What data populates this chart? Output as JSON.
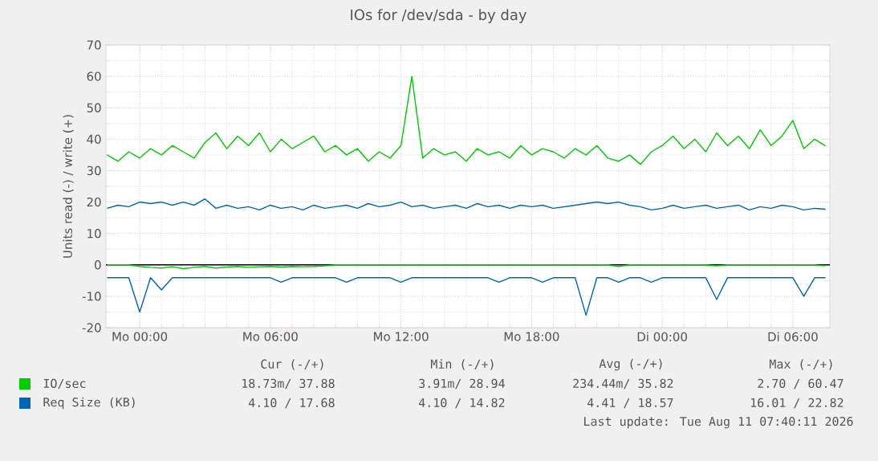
{
  "chart_data": {
    "type": "line",
    "title": "IOs for /dev/sda - by day",
    "ylabel": "Units read (-) / write (+)",
    "x": [
      "2026-08-09T22:30",
      "2026-08-09T23:00",
      "2026-08-09T23:30",
      "2026-08-10T00:00",
      "2026-08-10T00:30",
      "2026-08-10T01:00",
      "2026-08-10T01:30",
      "2026-08-10T02:00",
      "2026-08-10T02:30",
      "2026-08-10T03:00",
      "2026-08-10T03:30",
      "2026-08-10T04:00",
      "2026-08-10T04:30",
      "2026-08-10T05:00",
      "2026-08-10T05:30",
      "2026-08-10T06:00",
      "2026-08-10T06:30",
      "2026-08-10T07:00",
      "2026-08-10T07:30",
      "2026-08-10T08:00",
      "2026-08-10T08:30",
      "2026-08-10T09:00",
      "2026-08-10T09:30",
      "2026-08-10T10:00",
      "2026-08-10T10:30",
      "2026-08-10T11:00",
      "2026-08-10T11:30",
      "2026-08-10T12:00",
      "2026-08-10T12:30",
      "2026-08-10T13:00",
      "2026-08-10T13:30",
      "2026-08-10T14:00",
      "2026-08-10T14:30",
      "2026-08-10T15:00",
      "2026-08-10T15:30",
      "2026-08-10T16:00",
      "2026-08-10T16:30",
      "2026-08-10T17:00",
      "2026-08-10T17:30",
      "2026-08-10T18:00",
      "2026-08-10T18:30",
      "2026-08-10T19:00",
      "2026-08-10T19:30",
      "2026-08-10T20:00",
      "2026-08-10T20:30",
      "2026-08-10T21:00",
      "2026-08-10T21:30",
      "2026-08-10T22:00",
      "2026-08-10T22:30",
      "2026-08-10T23:00",
      "2026-08-10T23:30",
      "2026-08-11T00:00",
      "2026-08-11T00:30",
      "2026-08-11T01:00",
      "2026-08-11T01:30",
      "2026-08-11T02:00",
      "2026-08-11T02:30",
      "2026-08-11T03:00",
      "2026-08-11T03:30",
      "2026-08-11T04:00",
      "2026-08-11T04:30",
      "2026-08-11T05:00",
      "2026-08-11T05:30",
      "2026-08-11T06:00",
      "2026-08-11T06:30",
      "2026-08-11T07:00",
      "2026-08-11T07:30"
    ],
    "xlim": [
      "2026-08-09T22:27",
      "2026-08-11T07:42"
    ],
    "xticks": [
      {
        "value": "2026-08-10T00:00",
        "label": "Mo 00:00"
      },
      {
        "value": "2026-08-10T06:00",
        "label": "Mo 06:00"
      },
      {
        "value": "2026-08-10T12:00",
        "label": "Mo 12:00"
      },
      {
        "value": "2026-08-10T18:00",
        "label": "Mo 18:00"
      },
      {
        "value": "2026-08-11T00:00",
        "label": "Di 00:00"
      },
      {
        "value": "2026-08-11T06:00",
        "label": "Di 06:00"
      }
    ],
    "ylim": [
      -20,
      70
    ],
    "yticks": [
      -20,
      -10,
      0,
      10,
      20,
      30,
      40,
      50,
      60,
      70
    ],
    "grid": true,
    "legend": "bottom",
    "marker": "none",
    "line_style": "solid",
    "ref_lines": [
      {
        "axis": "y",
        "value": 0,
        "color": "#000000"
      }
    ],
    "series": [
      {
        "name": "IO/sec",
        "color": "#00cc00",
        "values": [
          35,
          33,
          36,
          34,
          37,
          35,
          38,
          36,
          34,
          39,
          42,
          37,
          41,
          38,
          42,
          36,
          40,
          37,
          39,
          41,
          36,
          38,
          35,
          37,
          33,
          36,
          34,
          38,
          60,
          34,
          37,
          35,
          36,
          33,
          37,
          35,
          36,
          34,
          38,
          35,
          37,
          36,
          34,
          37,
          35,
          38,
          34,
          33,
          35,
          32,
          36,
          38,
          41,
          37,
          40,
          36,
          42,
          38,
          41,
          37,
          43,
          38,
          41,
          46,
          37,
          40,
          37.9
        ]
      },
      {
        "color": "#00cc00",
        "values": [
          0,
          0,
          0,
          -0.5,
          -0.8,
          -1,
          -0.6,
          -1.2,
          -0.8,
          -0.5,
          -1,
          -0.7,
          -0.5,
          -0.8,
          -0.6,
          -0.5,
          -0.7,
          -0.5,
          -0.6,
          -0.5,
          -0.3,
          0,
          0,
          0,
          0,
          0,
          0,
          0,
          0,
          0,
          0,
          0,
          0,
          0,
          0,
          0,
          0,
          0,
          0,
          0,
          0,
          0,
          0,
          0,
          0,
          0,
          0,
          -0.5,
          0,
          0,
          0,
          0,
          0,
          0,
          0,
          0,
          -0.3,
          0,
          0,
          0,
          0,
          0,
          0,
          0,
          0,
          0,
          -0.3
        ]
      },
      {
        "name": "Req Size (KB)",
        "color": "#0066b3",
        "values": [
          18,
          19,
          18.5,
          20,
          19.5,
          20,
          19,
          20,
          19,
          21,
          18,
          19,
          18,
          18.5,
          17.5,
          19,
          18,
          18.5,
          17.5,
          19,
          18,
          18.5,
          19,
          18,
          19.5,
          18.5,
          19,
          20,
          18.5,
          19,
          18,
          18.5,
          19,
          18,
          19.5,
          18.5,
          19,
          18,
          19,
          18.5,
          19,
          18,
          18.5,
          19,
          19.5,
          20,
          19.5,
          20,
          19,
          18.5,
          17.5,
          18,
          19,
          18,
          18.5,
          19,
          18,
          18.5,
          19,
          17.5,
          18.5,
          18,
          19,
          18.5,
          17.5,
          18,
          17.7
        ]
      },
      {
        "color": "#0066b3",
        "values": [
          -4.1,
          -4.1,
          -4.1,
          -15,
          -4.1,
          -8,
          -4.1,
          -4.1,
          -4.1,
          -4.1,
          -4.1,
          -4.1,
          -4.1,
          -4.1,
          -4.1,
          -4.1,
          -5.5,
          -4.1,
          -4.1,
          -4.1,
          -4.1,
          -4.1,
          -5.5,
          -4.1,
          -4.1,
          -4.1,
          -4.1,
          -5.5,
          -4.1,
          -4.1,
          -4.1,
          -4.1,
          -4.1,
          -4.1,
          -4.1,
          -4.1,
          -5.5,
          -4.1,
          -4.1,
          -4.1,
          -5.5,
          -4.1,
          -4.1,
          -4.1,
          -16,
          -4.1,
          -4.1,
          -5.5,
          -4.1,
          -4.1,
          -5.5,
          -4.1,
          -4.1,
          -4.1,
          -4.1,
          -4.1,
          -11,
          -4.1,
          -4.1,
          -4.1,
          -4.1,
          -4.1,
          -4.1,
          -4.1,
          -10,
          -4.1,
          -4.1
        ]
      }
    ],
    "annotations": [
      "Cur (-/+)",
      "Min (-/+)",
      "Avg (-/+)",
      "Max (-/+)",
      "18.73m/ 37.88",
      "3.91m/ 28.94",
      "234.44m/ 35.82",
      "2.70 / 60.47",
      "4.10 / 17.68",
      "4.10 / 14.82",
      "4.41 / 18.57",
      "16.01 / 22.82",
      "Last update: Tue Aug 11 07:40:11 2026"
    ]
  }
}
